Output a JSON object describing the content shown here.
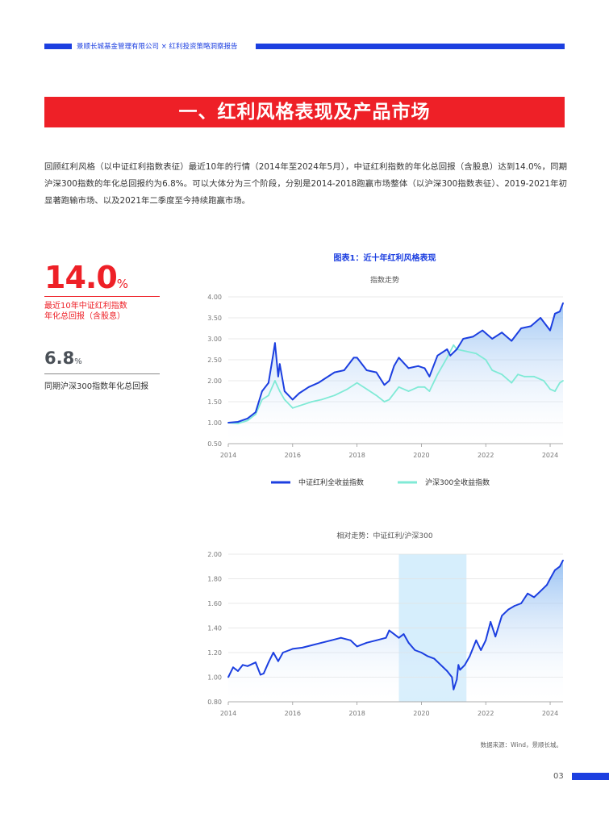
{
  "header": {
    "text": "景顺长城基金管理有限公司 × 红利投资策略洞察报告",
    "color": "#1c3fe0"
  },
  "section_title": "一、红利风格表现及产品市场",
  "intro": "回顾红利风格（以中证红利指数表征）最近10年的行情（2014年至2024年5月），中证红利指数的年化总回报（含股息）达到14.0%，同期沪深300指数的年化总回报约为6.8%。可以大体分为三个阶段，分别是2014-2018跑赢市场整体（以沪深300指数表征）、2019-2021年初显著跑输市场、以及2021年二季度至今持续跑赢市场。",
  "kpi": {
    "big_value": "14.0",
    "big_unit": "%",
    "big_caption_line1": "最近10年中证红利指数",
    "big_caption_line2": "年化总回报（含股息）",
    "small_value": "6.8",
    "small_unit": "%",
    "small_caption": "同期沪深300指数年化总回报"
  },
  "figure_title": "图表1：近十年红利风格表现",
  "source_note": "数据来源：Wind，景顺长城。",
  "page_number": "03",
  "colors": {
    "accent_red": "#ee2027",
    "blue": "#1c3fe0",
    "mint": "#80ead6",
    "highlight": "#d6eefc"
  },
  "chart_data": [
    {
      "type": "line",
      "title": "指数走势",
      "x_ticks": [
        "2014",
        "2016",
        "2018",
        "2020",
        "2022",
        "2024"
      ],
      "y_ticks": [
        "0.50",
        "1.00",
        "1.50",
        "2.00",
        "2.50",
        "3.00",
        "3.50",
        "4.00"
      ],
      "xlim": [
        2014.0,
        2024.4
      ],
      "ylim": [
        0.5,
        4.0
      ],
      "grid": "horizontal",
      "legend": "bottom-center",
      "series": [
        {
          "name": "中证红利全收益指数",
          "color": "#1c3fe0",
          "x": [
            2014.0,
            2014.3,
            2014.6,
            2014.85,
            2015.05,
            2015.25,
            2015.4,
            2015.45,
            2015.55,
            2015.6,
            2015.75,
            2016.0,
            2016.2,
            2016.5,
            2016.8,
            2017.0,
            2017.3,
            2017.6,
            2017.9,
            2018.0,
            2018.3,
            2018.6,
            2018.85,
            2019.0,
            2019.15,
            2019.3,
            2019.6,
            2019.9,
            2020.1,
            2020.25,
            2020.5,
            2020.8,
            2020.9,
            2021.1,
            2021.3,
            2021.6,
            2021.9,
            2022.2,
            2022.5,
            2022.8,
            2023.1,
            2023.4,
            2023.7,
            2023.9,
            2024.0,
            2024.15,
            2024.3,
            2024.4
          ],
          "y": [
            1.0,
            1.02,
            1.1,
            1.25,
            1.75,
            1.95,
            2.65,
            2.9,
            2.1,
            2.4,
            1.75,
            1.55,
            1.7,
            1.85,
            1.95,
            2.05,
            2.2,
            2.25,
            2.55,
            2.55,
            2.25,
            2.2,
            1.9,
            2.0,
            2.35,
            2.55,
            2.3,
            2.35,
            2.3,
            2.1,
            2.6,
            2.75,
            2.6,
            2.75,
            3.0,
            3.05,
            3.2,
            3.0,
            3.15,
            2.95,
            3.25,
            3.3,
            3.5,
            3.3,
            3.2,
            3.6,
            3.65,
            3.85
          ]
        },
        {
          "name": "沪深300全收益指数",
          "color": "#80ead6",
          "x": [
            2014.0,
            2014.3,
            2014.6,
            2014.85,
            2015.05,
            2015.25,
            2015.45,
            2015.6,
            2015.75,
            2016.0,
            2016.2,
            2016.6,
            2016.9,
            2017.3,
            2017.7,
            2018.0,
            2018.3,
            2018.6,
            2018.85,
            2019.0,
            2019.3,
            2019.6,
            2019.9,
            2020.1,
            2020.25,
            2020.5,
            2020.8,
            2021.0,
            2021.1,
            2021.4,
            2021.7,
            2022.0,
            2022.2,
            2022.5,
            2022.8,
            2023.0,
            2023.2,
            2023.5,
            2023.8,
            2024.0,
            2024.15,
            2024.3,
            2024.4
          ],
          "y": [
            1.0,
            0.98,
            1.05,
            1.2,
            1.55,
            1.65,
            2.0,
            1.75,
            1.55,
            1.35,
            1.4,
            1.5,
            1.55,
            1.65,
            1.8,
            1.95,
            1.8,
            1.65,
            1.5,
            1.55,
            1.85,
            1.75,
            1.85,
            1.85,
            1.75,
            2.15,
            2.55,
            2.85,
            2.75,
            2.7,
            2.65,
            2.5,
            2.25,
            2.15,
            1.95,
            2.15,
            2.1,
            2.1,
            2.0,
            1.8,
            1.75,
            1.95,
            2.0
          ]
        }
      ]
    },
    {
      "type": "line",
      "title": "相对走势：中证红利/沪深300",
      "x_ticks": [
        "2014",
        "2016",
        "2018",
        "2020",
        "2022",
        "2024"
      ],
      "y_ticks": [
        "0.80",
        "1.00",
        "1.20",
        "1.40",
        "1.60",
        "1.80",
        "2.00"
      ],
      "xlim": [
        2014.0,
        2024.4
      ],
      "ylim": [
        0.8,
        2.0
      ],
      "grid": "horizontal",
      "highlight_range": [
        2019.3,
        2021.4
      ],
      "series": [
        {
          "name": "中证红利/沪深300",
          "color": "#1c3fe0",
          "x": [
            2014.0,
            2014.15,
            2014.3,
            2014.45,
            2014.6,
            2014.85,
            2015.0,
            2015.1,
            2015.25,
            2015.4,
            2015.55,
            2015.7,
            2015.9,
            2016.0,
            2016.3,
            2016.6,
            2016.9,
            2017.2,
            2017.5,
            2017.8,
            2018.0,
            2018.3,
            2018.6,
            2018.9,
            2019.0,
            2019.15,
            2019.3,
            2019.45,
            2019.6,
            2019.8,
            2020.0,
            2020.2,
            2020.4,
            2020.6,
            2020.8,
            2020.95,
            2021.0,
            2021.1,
            2021.15,
            2021.2,
            2021.35,
            2021.5,
            2021.7,
            2021.85,
            2022.0,
            2022.15,
            2022.3,
            2022.5,
            2022.7,
            2022.9,
            2023.1,
            2023.3,
            2023.5,
            2023.7,
            2023.9,
            2024.0,
            2024.15,
            2024.3,
            2024.4
          ],
          "y": [
            1.0,
            1.08,
            1.05,
            1.1,
            1.09,
            1.12,
            1.02,
            1.03,
            1.12,
            1.2,
            1.13,
            1.2,
            1.22,
            1.23,
            1.24,
            1.26,
            1.28,
            1.3,
            1.32,
            1.3,
            1.25,
            1.28,
            1.3,
            1.32,
            1.38,
            1.35,
            1.32,
            1.35,
            1.28,
            1.22,
            1.2,
            1.17,
            1.15,
            1.1,
            1.05,
            1.0,
            0.9,
            0.98,
            1.1,
            1.06,
            1.1,
            1.17,
            1.3,
            1.22,
            1.3,
            1.45,
            1.33,
            1.5,
            1.55,
            1.58,
            1.6,
            1.68,
            1.65,
            1.7,
            1.75,
            1.8,
            1.87,
            1.9,
            1.95
          ]
        }
      ]
    }
  ]
}
